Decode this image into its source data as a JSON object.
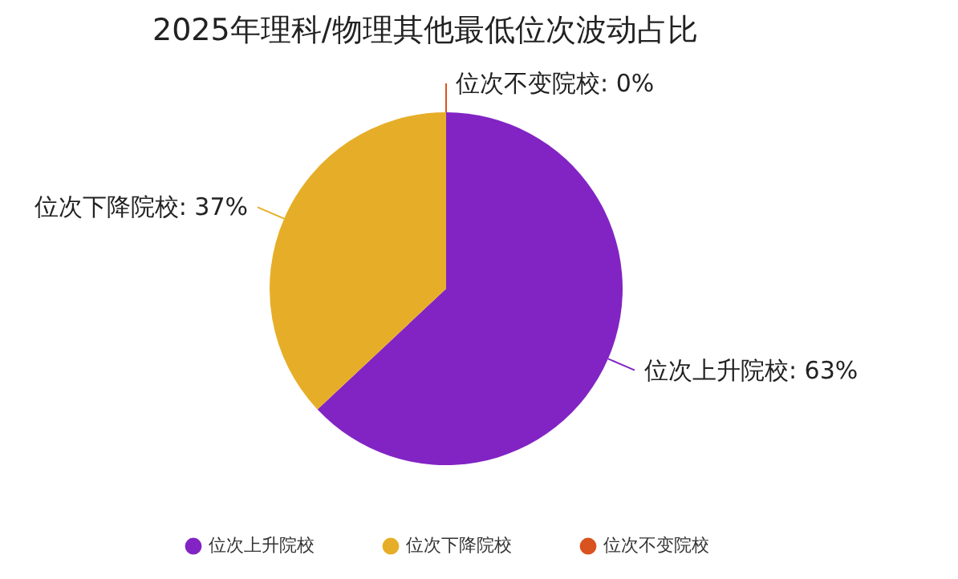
{
  "chart_data": {
    "type": "pie",
    "title": "2025年理科/物理其他最低位次波动占比",
    "categories": [
      "位次上升院校",
      "位次下降院校",
      "位次不变院校"
    ],
    "values": [
      63,
      37,
      0
    ],
    "colors": [
      "#8224c4",
      "#e6ae28",
      "#d9531e"
    ],
    "value_labels": [
      "位次上升院校: 63%",
      "位次下降院校: 37%",
      "位次不变院校: 0%"
    ],
    "legend": "bottom"
  }
}
